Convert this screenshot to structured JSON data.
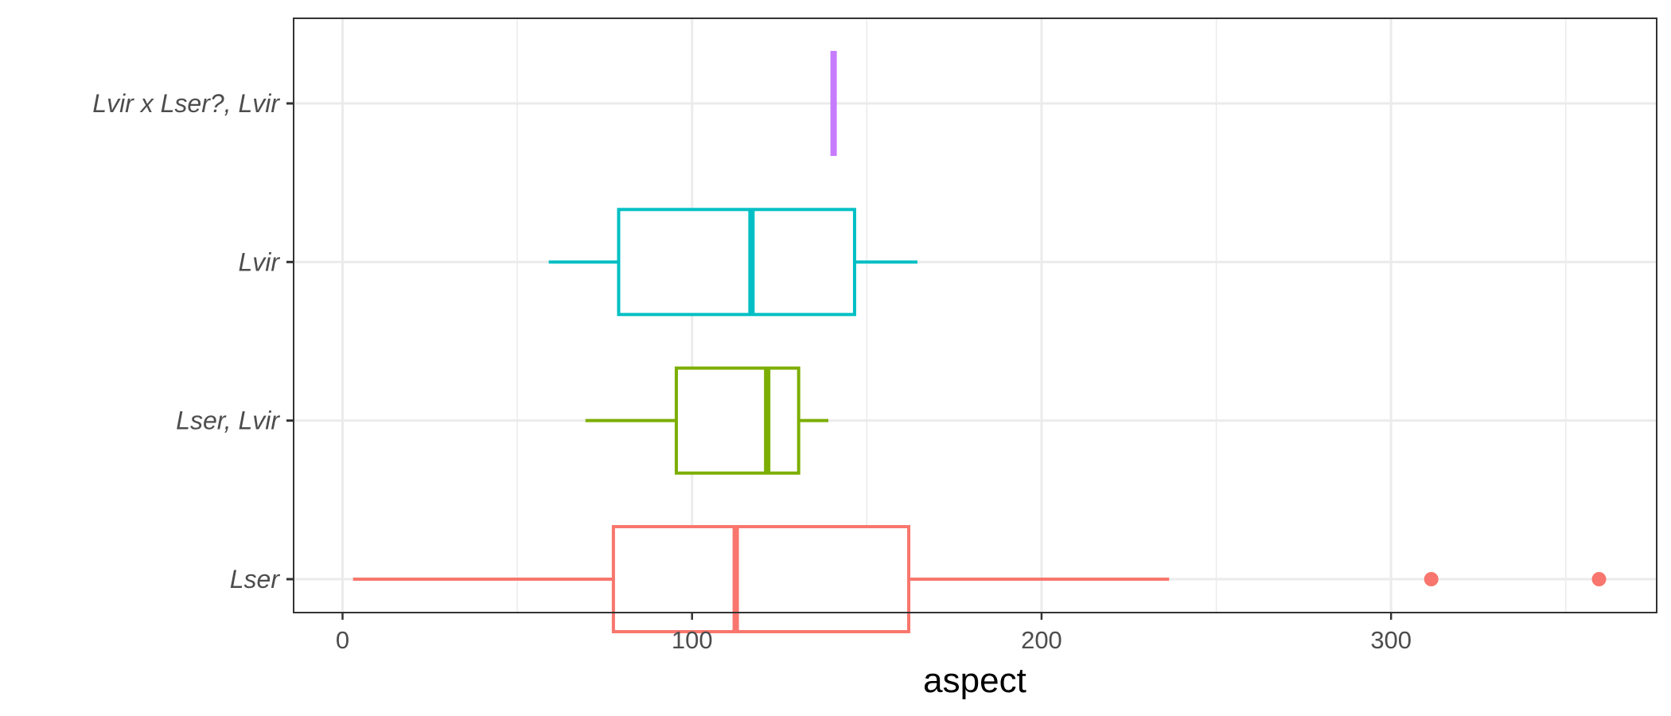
{
  "chart_data": {
    "type": "boxplot",
    "orientation": "horizontal",
    "xlabel": "aspect",
    "ylabel": "",
    "xlim": [
      -14,
      376
    ],
    "x_ticks": [
      0,
      100,
      200,
      300
    ],
    "x_minor_ticks": [
      50,
      150,
      250,
      350
    ],
    "grid": true,
    "categories": [
      "Lvir x Lser?, Lvir",
      "Lvir",
      "Lser, Lvir",
      "Lser"
    ],
    "series": [
      {
        "category": "Lvir x Lser?, Lvir",
        "color": "#C77CFF",
        "min": 140.5,
        "q1": 140.5,
        "median": 140.5,
        "q3": 140.5,
        "max": 140.5,
        "outliers": []
      },
      {
        "category": "Lvir",
        "color": "#00BFC4",
        "min": 59,
        "q1": 79,
        "median": 117,
        "q3": 146.5,
        "max": 164.5,
        "outliers": []
      },
      {
        "category": "Lser, Lvir",
        "color": "#7CAE00",
        "min": 69.5,
        "q1": 95.5,
        "median": 121.5,
        "q3": 130.5,
        "max": 139,
        "outliers": []
      },
      {
        "category": "Lser",
        "color": "#F8766D",
        "min": 3,
        "q1": 77.5,
        "median": 112.5,
        "q3": 162,
        "max": 236.5,
        "outliers": [
          311.5,
          359.5
        ]
      }
    ]
  }
}
